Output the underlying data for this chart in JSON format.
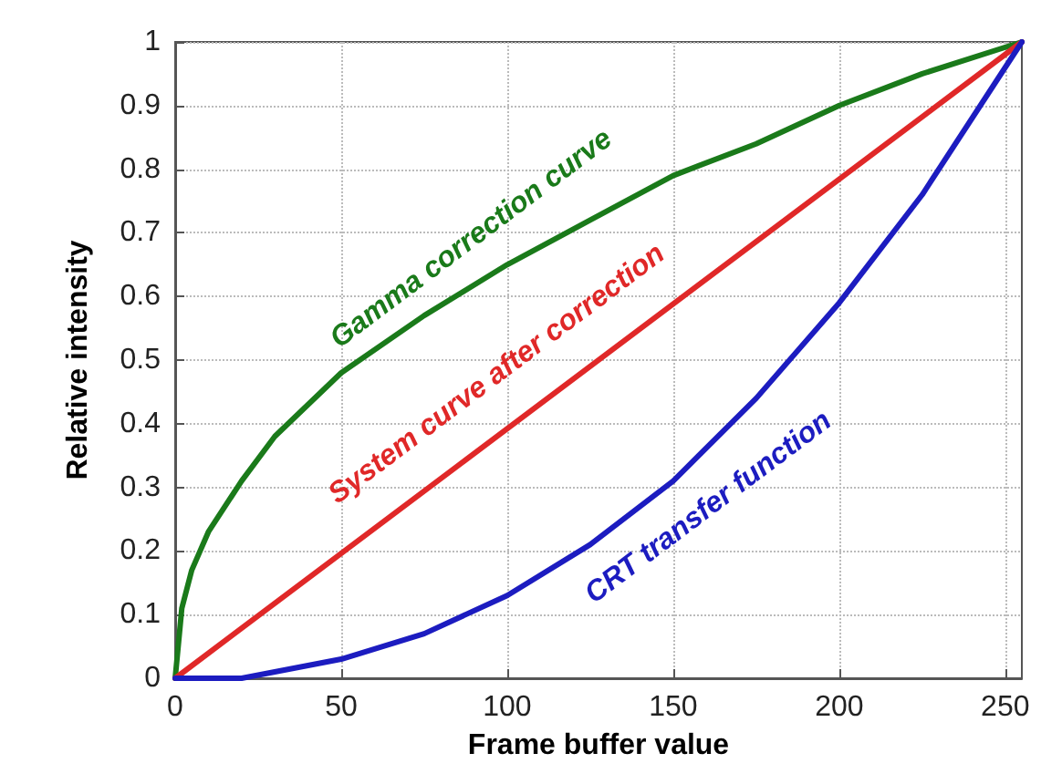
{
  "chart_data": {
    "type": "line",
    "xlabel": "Frame buffer value",
    "ylabel": "Relative intensity",
    "xlim": [
      0,
      255
    ],
    "xticks": [
      0,
      50,
      100,
      150,
      200,
      250
    ],
    "ylim": [
      0,
      1
    ],
    "yticks": [
      0,
      0.1,
      0.2,
      0.3,
      0.4,
      0.5,
      0.6,
      0.7,
      0.8,
      0.9,
      1
    ],
    "grid": true,
    "marker": "none",
    "line_style": "solid",
    "series": [
      {
        "color": "#1a7a1a",
        "x": [
          0,
          2,
          5,
          10,
          20,
          30,
          50,
          75,
          100,
          125,
          150,
          175,
          200,
          225,
          255
        ],
        "values": [
          0,
          0.11,
          0.17,
          0.23,
          0.31,
          0.38,
          0.48,
          0.57,
          0.65,
          0.72,
          0.79,
          0.84,
          0.9,
          0.95,
          1
        ]
      },
      {
        "color": "#e02828",
        "x": [
          0,
          255
        ],
        "values": [
          0,
          1
        ]
      },
      {
        "color": "#1c1cc0",
        "x": [
          0,
          10,
          20,
          30,
          50,
          75,
          100,
          125,
          150,
          175,
          200,
          225,
          255
        ],
        "values": [
          0,
          0,
          0,
          0.01,
          0.03,
          0.07,
          0.13,
          0.21,
          0.31,
          0.44,
          0.59,
          0.76,
          1
        ]
      }
    ],
    "annotations": [
      "Gamma correction curve",
      "System curve after correction",
      "CRT transfer function"
    ]
  }
}
